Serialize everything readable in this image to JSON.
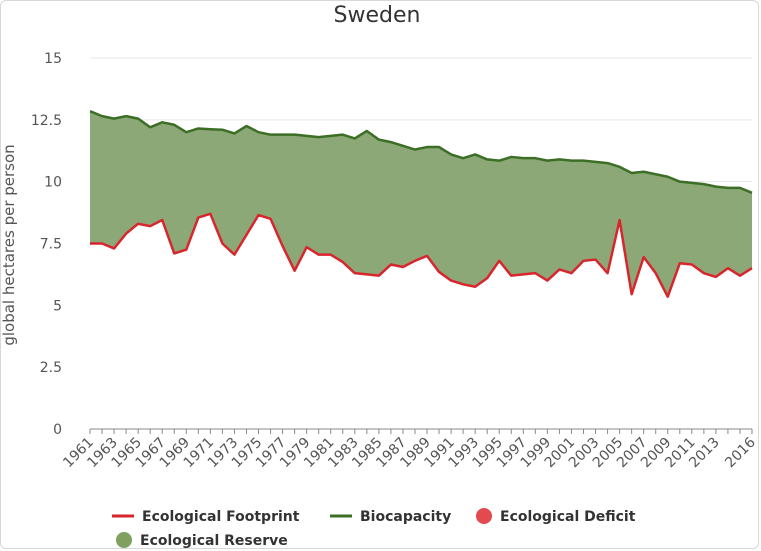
{
  "chart_data": {
    "type": "area",
    "title": "Sweden",
    "ylabel": "global hectares per person",
    "xlabel": "",
    "ylim": [
      0,
      15
    ],
    "y_ticks": [
      "0",
      "2.5",
      "5",
      "7.5",
      "10",
      "12.5",
      "15"
    ],
    "x_tick_labels": [
      "1961",
      "1963",
      "1965",
      "1967",
      "1969",
      "1971",
      "1973",
      "1975",
      "1977",
      "1979",
      "1981",
      "1983",
      "1985",
      "1987",
      "1989",
      "1991",
      "1993",
      "1995",
      "1997",
      "1999",
      "2001",
      "2003",
      "2005",
      "2007",
      "2009",
      "2011",
      "2013",
      "2016"
    ],
    "x_tick_years": [
      1961,
      1963,
      1965,
      1967,
      1969,
      1971,
      1973,
      1975,
      1977,
      1979,
      1981,
      1983,
      1985,
      1987,
      1989,
      1991,
      1993,
      1995,
      1997,
      1999,
      2001,
      2003,
      2005,
      2007,
      2009,
      2011,
      2013,
      2016
    ],
    "x": [
      1961,
      1962,
      1963,
      1964,
      1965,
      1966,
      1967,
      1968,
      1969,
      1970,
      1971,
      1972,
      1973,
      1974,
      1975,
      1976,
      1977,
      1978,
      1979,
      1980,
      1981,
      1982,
      1983,
      1984,
      1985,
      1986,
      1987,
      1988,
      1989,
      1990,
      1991,
      1992,
      1993,
      1994,
      1995,
      1996,
      1997,
      1998,
      1999,
      2000,
      2001,
      2002,
      2003,
      2004,
      2005,
      2006,
      2007,
      2008,
      2009,
      2010,
      2011,
      2012,
      2013,
      2014,
      2015,
      2016
    ],
    "series": [
      {
        "name": "Ecological Footprint",
        "color": "#d7262d",
        "values": [
          7.5,
          7.5,
          7.3,
          7.9,
          8.3,
          8.2,
          8.45,
          7.1,
          7.25,
          8.55,
          8.7,
          7.5,
          7.05,
          7.85,
          8.65,
          8.5,
          7.4,
          6.4,
          7.35,
          7.05,
          7.05,
          6.75,
          6.3,
          6.25,
          6.2,
          6.65,
          6.55,
          6.8,
          7.0,
          6.35,
          6.0,
          5.85,
          5.75,
          6.1,
          6.8,
          6.2,
          6.25,
          6.3,
          6.0,
          6.45,
          6.3,
          6.8,
          6.85,
          6.3,
          8.45,
          5.45,
          6.95,
          6.3,
          5.35,
          6.7,
          6.65,
          6.3,
          6.15,
          6.5,
          6.2,
          6.5
        ]
      },
      {
        "name": "Biocapacity",
        "color": "#3c6e26",
        "values": [
          12.85,
          12.65,
          12.55,
          12.65,
          12.55,
          12.2,
          12.4,
          12.3,
          12.0,
          12.15,
          12.12,
          12.1,
          11.95,
          12.25,
          12.0,
          11.9,
          11.9,
          11.9,
          11.85,
          11.8,
          11.85,
          11.9,
          11.75,
          12.05,
          11.7,
          11.6,
          11.45,
          11.3,
          11.4,
          11.4,
          11.1,
          10.95,
          11.1,
          10.9,
          10.85,
          11.0,
          10.95,
          10.95,
          10.85,
          10.9,
          10.85,
          10.85,
          10.8,
          10.75,
          10.6,
          10.35,
          10.4,
          10.3,
          10.2,
          10.0,
          9.95,
          9.9,
          9.8,
          9.75,
          9.75,
          9.55
        ]
      }
    ],
    "reserve_color": "#8ca876",
    "legend": [
      {
        "label": "Ecological Footprint",
        "symbol": "line",
        "color": "#d7262d"
      },
      {
        "label": "Biocapacity",
        "symbol": "line",
        "color": "#3c6e26"
      },
      {
        "label": "Ecological Deficit",
        "symbol": "circle",
        "color": "#e34a4f"
      },
      {
        "label": "Ecological Reserve",
        "symbol": "circle",
        "color": "#7fa05e"
      }
    ]
  }
}
